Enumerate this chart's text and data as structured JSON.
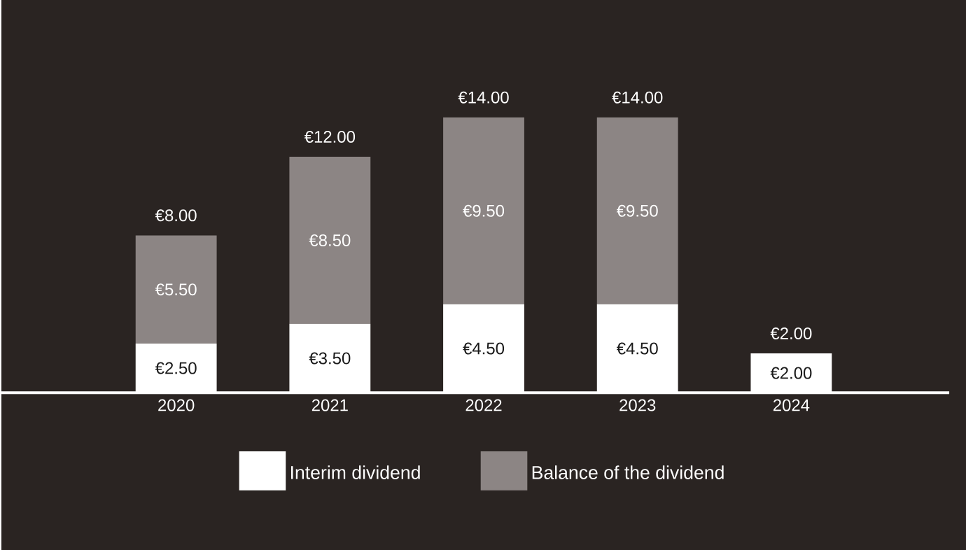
{
  "chart_data": {
    "type": "bar",
    "stacked": true,
    "legend": "bottom",
    "tick_labels": "x",
    "categories": [
      "2020",
      "2021",
      "2022",
      "2023",
      "2024"
    ],
    "series": [
      {
        "name": "Interim dividend",
        "color": "#ffffff",
        "values": [
          2.5,
          3.5,
          4.5,
          4.5,
          2.0
        ],
        "value_labels": [
          "€2.50",
          "€3.50",
          "€4.50",
          "€4.50",
          "€2.00"
        ]
      },
      {
        "name": "Balance of the dividend",
        "color": "#8c8584",
        "values": [
          5.5,
          8.5,
          9.5,
          9.5,
          null
        ],
        "value_labels": [
          "€5.50",
          "€8.50",
          "€9.50",
          "€9.50",
          null
        ]
      }
    ],
    "totals": [
      "€8.00",
      "€12.00",
      "€14.00",
      "€14.00",
      "€2.00"
    ]
  }
}
